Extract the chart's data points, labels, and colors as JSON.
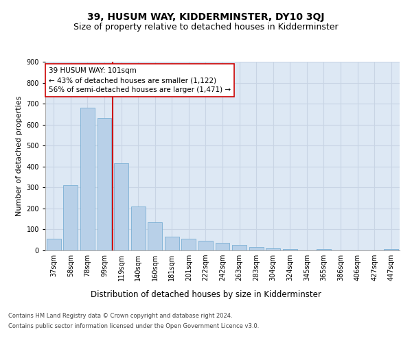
{
  "title": "39, HUSUM WAY, KIDDERMINSTER, DY10 3QJ",
  "subtitle": "Size of property relative to detached houses in Kidderminster",
  "xlabel": "Distribution of detached houses by size in Kidderminster",
  "ylabel": "Number of detached properties",
  "categories": [
    "37sqm",
    "58sqm",
    "78sqm",
    "99sqm",
    "119sqm",
    "140sqm",
    "160sqm",
    "181sqm",
    "201sqm",
    "222sqm",
    "242sqm",
    "263sqm",
    "283sqm",
    "304sqm",
    "324sqm",
    "345sqm",
    "365sqm",
    "386sqm",
    "406sqm",
    "427sqm",
    "447sqm"
  ],
  "values": [
    55,
    310,
    680,
    630,
    415,
    210,
    135,
    65,
    55,
    45,
    35,
    25,
    15,
    10,
    8,
    0,
    5,
    0,
    0,
    0,
    5
  ],
  "bar_color": "#b8d0e8",
  "bar_edge_color": "#7aafd4",
  "grid_color": "#c8d4e4",
  "background_color": "#dde8f4",
  "annotation_text_line1": "39 HUSUM WAY: 101sqm",
  "annotation_text_line2": "← 43% of detached houses are smaller (1,122)",
  "annotation_text_line3": "56% of semi-detached houses are larger (1,471) →",
  "vline_index": 3.5,
  "vline_color": "#cc0000",
  "ylim": [
    0,
    900
  ],
  "yticks": [
    0,
    100,
    200,
    300,
    400,
    500,
    600,
    700,
    800,
    900
  ],
  "footer_line1": "Contains HM Land Registry data © Crown copyright and database right 2024.",
  "footer_line2": "Contains public sector information licensed under the Open Government Licence v3.0.",
  "title_fontsize": 10,
  "subtitle_fontsize": 9,
  "tick_fontsize": 7,
  "ylabel_fontsize": 8,
  "xlabel_fontsize": 8.5,
  "annotation_fontsize": 7.5,
  "footer_fontsize": 6
}
